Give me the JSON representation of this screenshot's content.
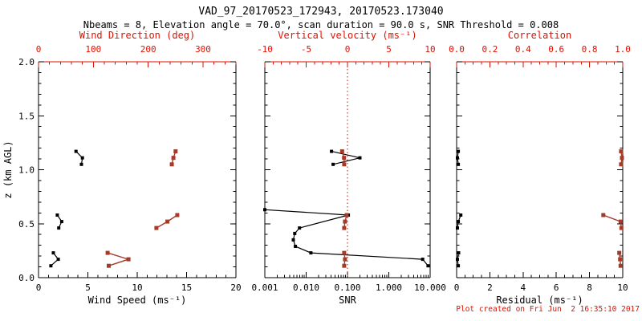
{
  "header": {
    "title": "VAD_97_20170523_172943, 20170523.173040",
    "subtitle": "Nbeams = 8, Elevation angle = 70.0°, scan duration = 90.0 s, SNR Threshold = 0.008"
  },
  "footer": {
    "created": "Plot created on Fri Jun  2 16:35:10 2017"
  },
  "palette": {
    "black": "#000000",
    "red_data": "#a63a28",
    "red_axis": "#e01000",
    "red_dotted": "#c04234"
  },
  "chart_data": {
    "type": "line",
    "title": "VAD_97_20170523_172943, 20170523.173040",
    "subtitle": "Nbeams = 8, Elevation angle = 70.0°, scan duration = 90.0 s, SNR Threshold = 0.008",
    "ylabel": "z (km AGL)",
    "ylim": [
      0,
      2
    ],
    "y_major_ticks": [
      0,
      0.5,
      1,
      1.5,
      2
    ],
    "y_tick_labels": [
      "0.0",
      "0.5",
      "1.0",
      "1.5",
      "2.0"
    ],
    "y_minor_step": 0.1,
    "grid": false,
    "panels": [
      {
        "name": "wind",
        "bottom_axis": {
          "label": "Wind Speed (ms⁻¹)",
          "min": 0,
          "max": 20,
          "scale": "linear",
          "major": [
            0,
            5,
            10,
            15,
            20
          ],
          "labels": [
            "0",
            "5",
            "10",
            "15",
            "20"
          ],
          "minor_step": 1,
          "color": "black"
        },
        "top_axis": {
          "label": "Wind Direction (deg)",
          "min": 0,
          "max": 360,
          "scale": "linear",
          "major": [
            0,
            100,
            200,
            300
          ],
          "labels": [
            "0",
            "100",
            "200",
            "300"
          ],
          "minor_step": 20,
          "color": "red_axis"
        },
        "series": [
          {
            "name": "wind-speed",
            "axis": "bottom",
            "color": "black",
            "marker": 4,
            "groups": [
              [
                [
                  1.25,
                  0.11
                ],
                [
                  2.0,
                  0.17
                ],
                [
                  1.5,
                  0.23
                ]
              ],
              [
                [
                  2.05,
                  0.46
                ],
                [
                  2.35,
                  0.52
                ],
                [
                  1.9,
                  0.58
                ]
              ],
              [
                [
                  4.35,
                  1.05
                ],
                [
                  4.45,
                  1.11
                ],
                [
                  3.8,
                  1.17
                ]
              ]
            ]
          },
          {
            "name": "wind-direction",
            "axis": "top",
            "color": "red_data",
            "marker": 5,
            "groups": [
              [
                [
                  128,
                  0.11
                ],
                [
                  164,
                  0.17
                ],
                [
                  126,
                  0.23
                ]
              ],
              [
                [
                  215,
                  0.46
                ],
                [
                  235,
                  0.52
                ],
                [
                  253,
                  0.58
                ]
              ],
              [
                [
                  243,
                  1.05
                ],
                [
                  246,
                  1.11
                ],
                [
                  250,
                  1.17
                ]
              ]
            ]
          }
        ]
      },
      {
        "name": "snr",
        "bottom_axis": {
          "label": "SNR",
          "min": 0.001,
          "max": 10,
          "scale": "log",
          "major": [
            0.001,
            0.01,
            0.1,
            1,
            10
          ],
          "labels": [
            "0.001",
            "0.010",
            "0.100",
            "1.000",
            "10.000"
          ],
          "color": "black"
        },
        "top_axis": {
          "label": "Vertical velocity (ms⁻¹)",
          "min": -10,
          "max": 10,
          "scale": "linear",
          "major": [
            -10,
            -5,
            0,
            5,
            10
          ],
          "labels": [
            "-10",
            "-5",
            "0",
            "5",
            "10"
          ],
          "minor_step": 1,
          "color": "red_axis",
          "dotted_zero": true
        },
        "series": [
          {
            "name": "snr-profile",
            "axis": "bottom",
            "color": "black",
            "marker": 4,
            "groups": [
              [
                [
                  8.9,
                  0.11
                ],
                [
                  6.6,
                  0.17
                ],
                [
                  0.013,
                  0.23
                ],
                [
                  0.0055,
                  0.29
                ],
                [
                  0.0049,
                  0.35
                ],
                [
                  0.0053,
                  0.41
                ],
                [
                  0.0069,
                  0.46
                ],
                [
                  0.105,
                  0.58
                ],
                [
                  0.001,
                  0.63
                ]
              ],
              [
                [
                  0.045,
                  1.05
                ],
                [
                  0.2,
                  1.11
                ],
                [
                  0.041,
                  1.17
                ]
              ]
            ]
          },
          {
            "name": "vertical-velocity",
            "axis": "top",
            "color": "red_data",
            "marker": 5,
            "groups": [
              [
                [
                  -0.4,
                  0.11
                ],
                [
                  -0.3,
                  0.17
                ],
                [
                  -0.4,
                  0.23
                ]
              ],
              [
                [
                  -0.4,
                  0.46
                ],
                [
                  -0.3,
                  0.52
                ],
                [
                  -0.1,
                  0.58
                ]
              ],
              [
                [
                  -0.4,
                  1.05
                ],
                [
                  -0.42,
                  1.11
                ],
                [
                  -0.65,
                  1.17
                ]
              ]
            ]
          }
        ]
      },
      {
        "name": "residual",
        "bottom_axis": {
          "label": "Residual (ms⁻¹)",
          "min": 0,
          "max": 10,
          "scale": "linear",
          "major": [
            0,
            2,
            4,
            6,
            8,
            10
          ],
          "labels": [
            "0",
            "2",
            "4",
            "6",
            "8",
            "10"
          ],
          "minor_step": 0.5,
          "color": "black"
        },
        "top_axis": {
          "label": "Correlation",
          "min": 0,
          "max": 1,
          "scale": "linear",
          "major": [
            0,
            0.2,
            0.4,
            0.6,
            0.8,
            1.0
          ],
          "labels": [
            "0.0",
            "0.2",
            "0.4",
            "0.6",
            "0.8",
            "1.0"
          ],
          "minor_step": 0.05,
          "color": "red_axis"
        },
        "series": [
          {
            "name": "residual",
            "axis": "bottom",
            "color": "black",
            "marker": 4,
            "groups": [
              [
                [
                  0.1,
                  0.11
                ],
                [
                  0.05,
                  0.17
                ],
                [
                  0.12,
                  0.23
                ]
              ],
              [
                [
                  0.05,
                  0.46
                ],
                [
                  0.1,
                  0.52
                ],
                [
                  0.25,
                  0.58
                ]
              ],
              [
                [
                  0.1,
                  1.05
                ],
                [
                  0.05,
                  1.11
                ],
                [
                  0.1,
                  1.17
                ]
              ]
            ]
          },
          {
            "name": "correlation",
            "axis": "top",
            "color": "red_data",
            "marker": 5,
            "groups": [
              [
                [
                  0.987,
                  0.11
                ],
                [
                  0.984,
                  0.17
                ],
                [
                  0.979,
                  0.23
                ]
              ],
              [
                [
                  0.992,
                  0.46
                ],
                [
                  0.987,
                  0.52
                ],
                [
                  0.883,
                  0.58
                ]
              ],
              [
                [
                  0.99,
                  1.05
                ],
                [
                  0.995,
                  1.11
                ],
                [
                  0.99,
                  1.17
                ]
              ]
            ]
          }
        ]
      }
    ],
    "footnote": "Plot created on Fri Jun  2 16:35:10 2017"
  }
}
